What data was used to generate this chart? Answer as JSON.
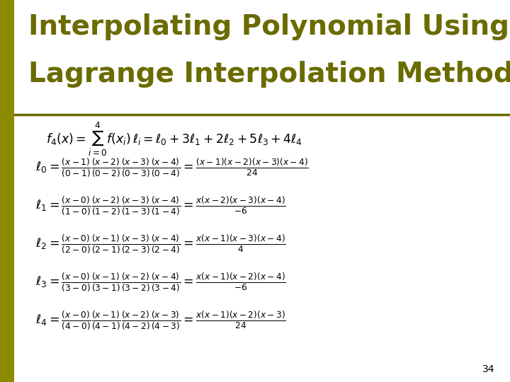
{
  "title_line1": "Interpolating Polynomial Using",
  "title_line2": "Lagrange Interpolation Method",
  "title_color": "#6b6b00",
  "bg_color": "#ffffff",
  "left_bar_color": "#8b8b00",
  "page_number": "34",
  "title_fontsize": 28,
  "body_fontsize": 12.5,
  "line_color": "#6b6b00"
}
